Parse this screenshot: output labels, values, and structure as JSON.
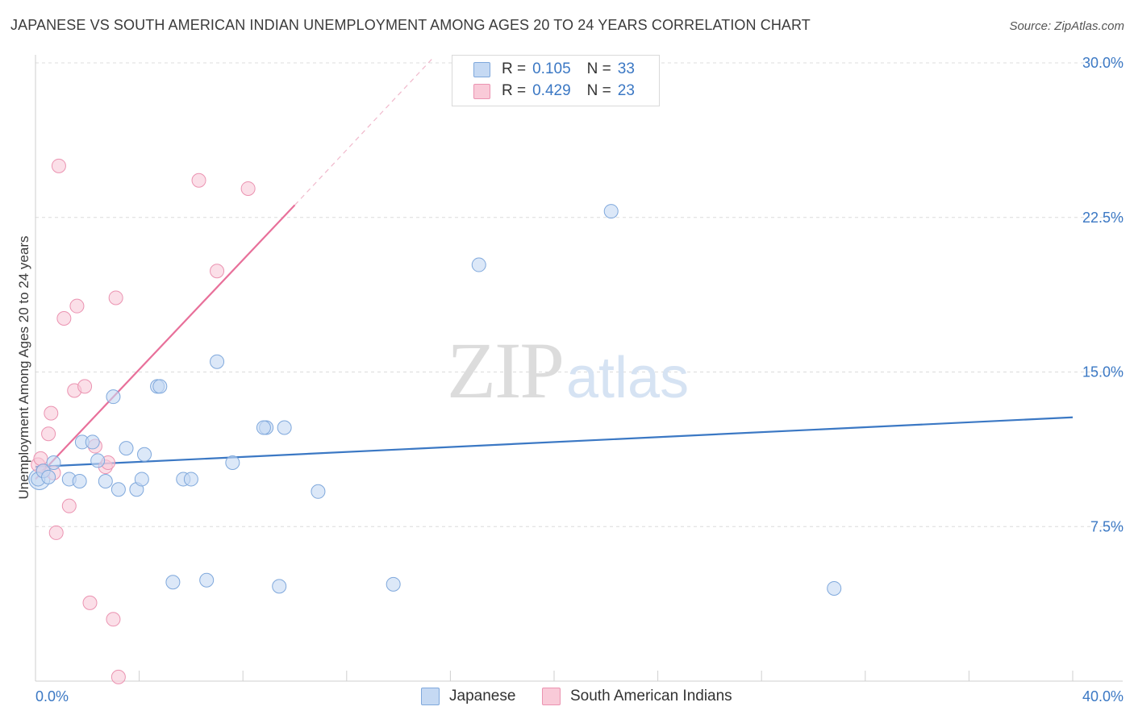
{
  "title": "JAPANESE VS SOUTH AMERICAN INDIAN UNEMPLOYMENT AMONG AGES 20 TO 24 YEARS CORRELATION CHART",
  "source": "Source: ZipAtlas.com",
  "watermark": {
    "zip": "ZIP",
    "atlas": "atlas"
  },
  "colors": {
    "blue": "#3b78c4",
    "blue_fill": "#c5d9f3",
    "pink": "#e8709a",
    "pink_fill": "#f9cad8"
  },
  "legend": {
    "rows": [
      {
        "r_label": "R =",
        "r_value": "0.105",
        "n_label": "N =",
        "n_value": "33"
      },
      {
        "r_label": "R =",
        "r_value": "0.429",
        "n_label": "N =",
        "n_value": "23"
      }
    ]
  },
  "bottom_legend": [
    "Japanese",
    "South American Indians"
  ],
  "chart_data": {
    "type": "scatter",
    "title": "JAPANESE VS SOUTH AMERICAN INDIAN UNEMPLOYMENT AMONG AGES 20 TO 24 YEARS CORRELATION CHART",
    "xlabel": "",
    "ylabel": "Unemployment Among Ages 20 to 24 years",
    "xlim": [
      0,
      40
    ],
    "ylim": [
      0,
      30
    ],
    "x_tick_labels": [
      "0.0%",
      "40.0%"
    ],
    "y_ticks": [
      7.5,
      15.0,
      22.5,
      30.0
    ],
    "y_tick_labels": [
      "7.5%",
      "15.0%",
      "22.5%",
      "30.0%"
    ],
    "grid": true,
    "legend_position": "top-center",
    "series": [
      {
        "name": "Japanese",
        "color": "#3b78c4",
        "points": [
          [
            0.1,
            9.8
          ],
          [
            0.3,
            10.2
          ],
          [
            0.5,
            9.9
          ],
          [
            0.7,
            10.6
          ],
          [
            1.3,
            9.8
          ],
          [
            1.7,
            9.7
          ],
          [
            1.8,
            11.6
          ],
          [
            2.2,
            11.6
          ],
          [
            2.4,
            10.7
          ],
          [
            2.7,
            9.7
          ],
          [
            3.0,
            13.8
          ],
          [
            3.2,
            9.3
          ],
          [
            3.5,
            11.3
          ],
          [
            3.9,
            9.3
          ],
          [
            4.1,
            9.8
          ],
          [
            4.2,
            11.0
          ],
          [
            4.7,
            14.3
          ],
          [
            4.8,
            14.3
          ],
          [
            5.3,
            4.8
          ],
          [
            5.7,
            9.8
          ],
          [
            6.0,
            9.8
          ],
          [
            6.6,
            4.9
          ],
          [
            7.0,
            15.5
          ],
          [
            7.6,
            10.6
          ],
          [
            8.9,
            12.3
          ],
          [
            8.8,
            12.3
          ],
          [
            9.6,
            12.3
          ],
          [
            9.4,
            4.6
          ],
          [
            10.9,
            9.2
          ],
          [
            13.8,
            4.7
          ],
          [
            17.1,
            20.2
          ],
          [
            22.2,
            22.8
          ],
          [
            30.8,
            4.5
          ]
        ],
        "trend": {
          "x0": 0,
          "y0": 10.4,
          "x1": 40,
          "y1": 12.8
        }
      },
      {
        "name": "South American Indians",
        "color": "#e8709a",
        "points": [
          [
            0.1,
            10.5
          ],
          [
            0.2,
            10.8
          ],
          [
            0.5,
            12.0
          ],
          [
            0.6,
            13.0
          ],
          [
            0.7,
            10.1
          ],
          [
            0.8,
            7.2
          ],
          [
            0.9,
            25.0
          ],
          [
            1.1,
            17.6
          ],
          [
            1.3,
            8.5
          ],
          [
            1.5,
            14.1
          ],
          [
            1.6,
            18.2
          ],
          [
            1.9,
            14.3
          ],
          [
            2.1,
            3.8
          ],
          [
            2.3,
            11.4
          ],
          [
            2.7,
            10.4
          ],
          [
            2.8,
            10.6
          ],
          [
            3.0,
            3.0
          ],
          [
            3.1,
            18.6
          ],
          [
            3.2,
            0.2
          ],
          [
            6.3,
            24.3
          ],
          [
            7.0,
            19.9
          ],
          [
            8.2,
            23.9
          ],
          [
            0.3,
            10.2
          ]
        ],
        "trend": {
          "x0": 0,
          "y0": 9.8,
          "x1": 10,
          "y1": 23.1,
          "dashed_to_x": 15.3,
          "dashed_to_y": 30.2
        }
      }
    ]
  }
}
